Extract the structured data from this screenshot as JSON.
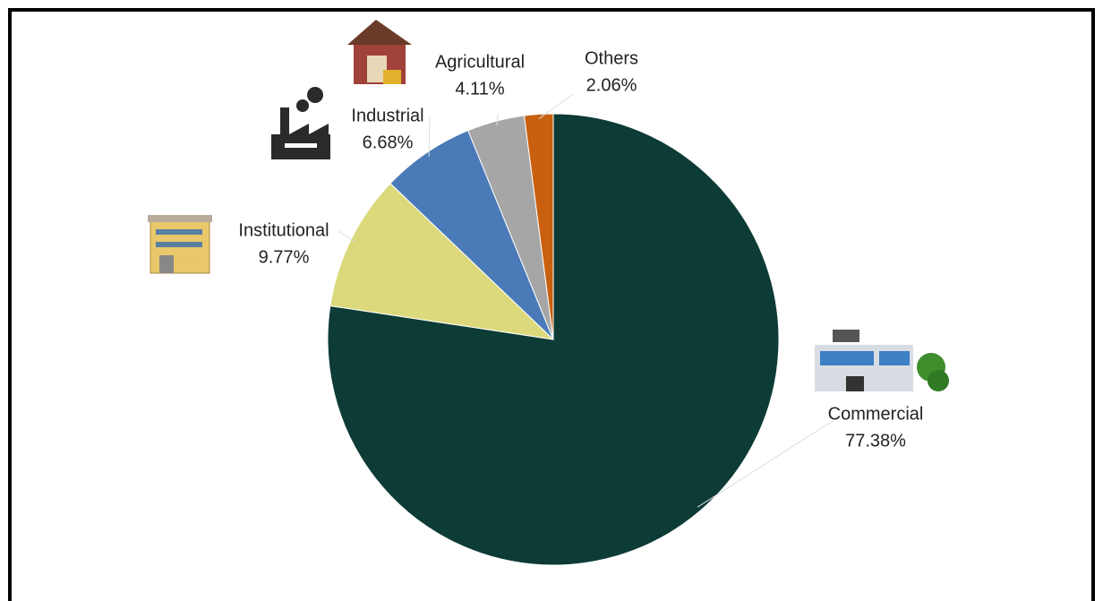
{
  "chart_data": {
    "type": "pie",
    "categories": [
      "Commercial",
      "Institutional",
      "Industrial",
      "Agricultural",
      "Others"
    ],
    "values": [
      77.38,
      9.77,
      6.68,
      4.11,
      2.06
    ],
    "value_labels": [
      "77.38%",
      "9.77%",
      "6.68%",
      "4.11%",
      "2.06%"
    ],
    "colors": [
      "#0d3b36",
      "#dbd97c",
      "#4a7ab8",
      "#a6a6a6",
      "#c8600f"
    ],
    "start_angle": 0,
    "direction": "clockwise"
  }
}
